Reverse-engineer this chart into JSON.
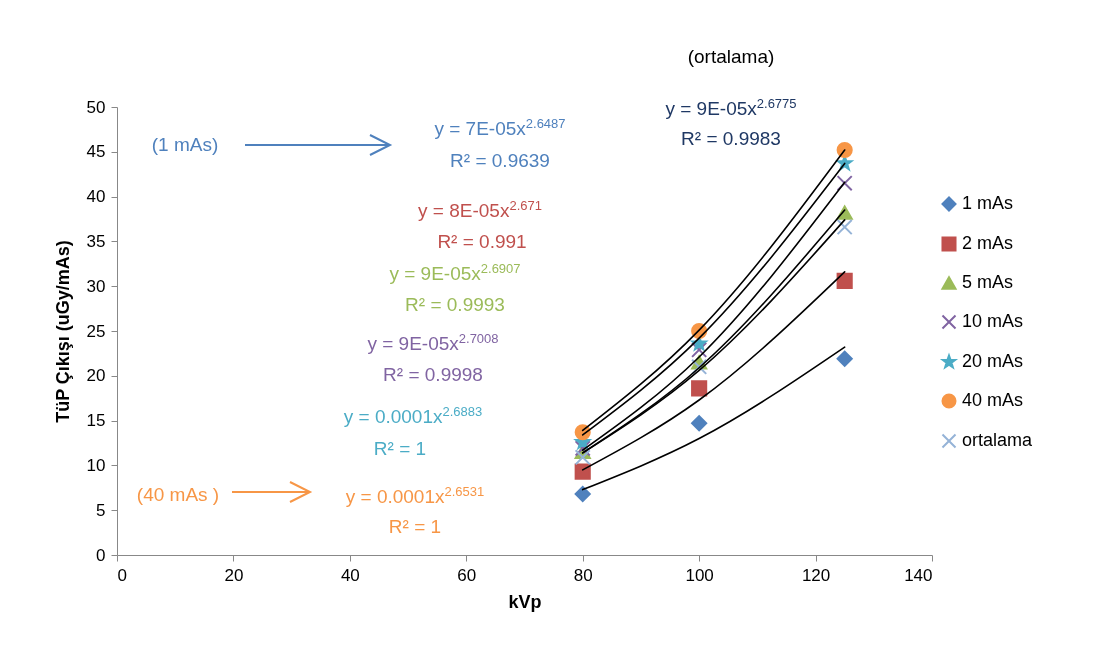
{
  "chart_data": {
    "type": "scatter",
    "xlabel": "kVp",
    "ylabel": "TüP Çıkışı (uGy/mAs)",
    "x": [
      80,
      100,
      125
    ],
    "xlim": [
      0,
      140
    ],
    "xticks": [
      0,
      20,
      40,
      60,
      80,
      100,
      120,
      140
    ],
    "ylim": [
      0,
      50
    ],
    "yticks": [
      0,
      5,
      10,
      15,
      20,
      25,
      30,
      35,
      40,
      45,
      50
    ],
    "grid": false,
    "legend": "right",
    "series": [
      {
        "name": "1 mAs",
        "marker": "diamond",
        "color": "#4f81bd",
        "values": [
          6.8,
          14.7,
          21.9
        ]
      },
      {
        "name": "2 mAs",
        "marker": "square",
        "color": "#c0504d",
        "values": [
          9.3,
          18.6,
          30.6
        ]
      },
      {
        "name": "5 mAs",
        "marker": "triangle",
        "color": "#9bbb59",
        "values": [
          11.5,
          21.5,
          38.2
        ]
      },
      {
        "name": "10 mAs",
        "marker": "cross",
        "color": "#8064a2",
        "values": [
          11.9,
          22.9,
          41.5
        ]
      },
      {
        "name": "20 mAs",
        "marker": "star",
        "color": "#4bacc6",
        "values": [
          12.6,
          23.6,
          43.7
        ]
      },
      {
        "name": "40 mAs",
        "marker": "circle",
        "color": "#f79646",
        "values": [
          13.7,
          25.0,
          45.2
        ]
      },
      {
        "name": "ortalama",
        "marker": "cross",
        "color": "#95b3d7",
        "values": [
          10.9,
          21.0,
          36.6
        ]
      },
      {
        "type": "line",
        "color": "#000000",
        "x": [
          80,
          100,
          125
        ],
        "values": [
          7.3,
          13.0,
          23.2
        ]
      },
      {
        "type": "line",
        "color": "#000000",
        "x": [
          80,
          100,
          125
        ],
        "values": [
          9.5,
          17.3,
          31.6
        ]
      },
      {
        "type": "line",
        "color": "#000000",
        "x": [
          80,
          100,
          125
        ],
        "values": [
          11.4,
          20.9,
          38.5
        ]
      },
      {
        "type": "line",
        "color": "#000000",
        "x": [
          80,
          100,
          125
        ],
        "values": [
          11.7,
          22.1,
          41.6
        ]
      },
      {
        "type": "line",
        "color": "#000000",
        "x": [
          80,
          100,
          125
        ],
        "values": [
          13.4,
          24.2,
          43.7
        ]
      },
      {
        "type": "line",
        "color": "#000000",
        "x": [
          80,
          100,
          125
        ],
        "values": [
          13.9,
          25.1,
          45.2
        ]
      },
      {
        "type": "line",
        "color": "#000000",
        "x": [
          80,
          100,
          125
        ],
        "values": [
          11.4,
          20.6,
          37.4
        ]
      }
    ],
    "annotations": [
      "(ortalama)",
      "(1 mAs)",
      "(40 mAs )",
      "y = 7E-05x$^{2.6487}$",
      "R² = 0.9639",
      "y = 8E-05x$^{2.671}$",
      "R² = 0.991",
      "y = 9E-05x$^{2.6907}$",
      "R² = 0.9993",
      "y = 9E-05x$^{2.7008}$",
      "R² = 0.9998",
      "y = 0.0001x$^{2.6883}$",
      "R² = 1",
      "y = 0.0001x$^{2.6531}$",
      "R² = 1",
      "y = 9E-05x$^{2.6775}$",
      "R² = 0.9983"
    ]
  }
}
